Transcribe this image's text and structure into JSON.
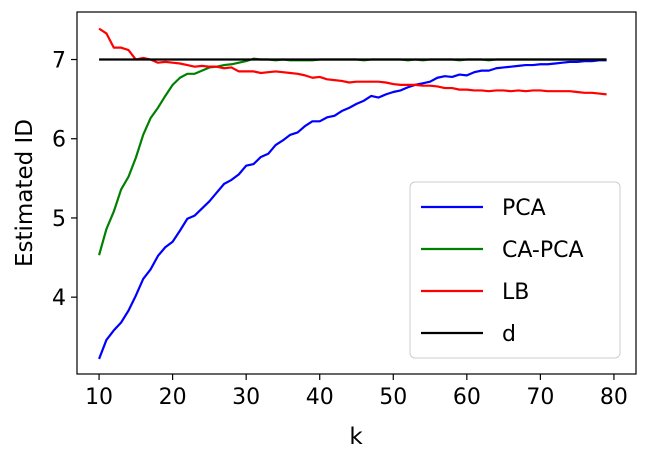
{
  "chart_data": {
    "type": "line",
    "title": "",
    "xlabel": "k",
    "ylabel": "Estimated ID",
    "xlim": [
      7,
      83
    ],
    "ylim": [
      3.03,
      7.6
    ],
    "xticks": [
      10,
      20,
      30,
      40,
      50,
      60,
      70,
      80
    ],
    "yticks": [
      4,
      5,
      6,
      7
    ],
    "grid": false,
    "legend_position": "lower-right",
    "x": [
      10,
      11,
      12,
      13,
      14,
      15,
      16,
      17,
      18,
      19,
      20,
      21,
      22,
      23,
      24,
      25,
      26,
      27,
      28,
      29,
      30,
      31,
      32,
      33,
      34,
      35,
      36,
      37,
      38,
      39,
      40,
      41,
      42,
      43,
      44,
      45,
      46,
      47,
      48,
      49,
      50,
      51,
      52,
      53,
      54,
      55,
      56,
      57,
      58,
      59,
      60,
      61,
      62,
      63,
      64,
      65,
      66,
      67,
      68,
      69,
      70,
      71,
      72,
      73,
      74,
      75,
      76,
      77,
      78,
      79
    ],
    "series": [
      {
        "name": "PCA",
        "color": "#0000ff",
        "values": [
          3.22,
          3.46,
          3.58,
          3.68,
          3.83,
          4.02,
          4.23,
          4.35,
          4.52,
          4.63,
          4.7,
          4.84,
          4.99,
          5.03,
          5.12,
          5.21,
          5.32,
          5.43,
          5.48,
          5.55,
          5.66,
          5.68,
          5.77,
          5.81,
          5.92,
          5.98,
          6.05,
          6.08,
          6.16,
          6.22,
          6.22,
          6.27,
          6.29,
          6.35,
          6.39,
          6.44,
          6.48,
          6.54,
          6.52,
          6.56,
          6.59,
          6.61,
          6.65,
          6.68,
          6.7,
          6.72,
          6.77,
          6.79,
          6.78,
          6.81,
          6.8,
          6.84,
          6.86,
          6.86,
          6.89,
          6.9,
          6.91,
          6.92,
          6.93,
          6.93,
          6.94,
          6.94,
          6.95,
          6.96,
          6.97,
          6.97,
          6.98,
          6.98,
          6.99,
          6.99
        ]
      },
      {
        "name": "CA-PCA",
        "color": "#008000",
        "values": [
          4.53,
          4.86,
          5.08,
          5.36,
          5.52,
          5.76,
          6.05,
          6.26,
          6.39,
          6.54,
          6.68,
          6.77,
          6.82,
          6.82,
          6.86,
          6.9,
          6.91,
          6.93,
          6.94,
          6.96,
          6.98,
          7.01,
          7.0,
          7.0,
          6.99,
          7.0,
          6.99,
          6.99,
          6.99,
          6.99,
          7.0,
          7.0,
          7.0,
          7.0,
          7.0,
          7.0,
          6.99,
          7.0,
          7.0,
          7.0,
          7.0,
          7.0,
          6.99,
          7.0,
          6.99,
          7.0,
          7.0,
          7.0,
          7.0,
          6.99,
          7.0,
          7.0,
          7.0,
          6.99,
          7.0,
          7.0,
          7.0,
          7.0,
          7.0,
          7.0,
          7.0,
          7.0,
          7.0,
          7.0,
          7.0,
          7.0,
          7.0,
          7.0,
          7.0,
          7.0
        ]
      },
      {
        "name": "LB",
        "color": "#ff0000",
        "values": [
          7.39,
          7.33,
          7.15,
          7.15,
          7.12,
          7.0,
          7.02,
          7.0,
          6.96,
          6.97,
          6.96,
          6.95,
          6.93,
          6.91,
          6.92,
          6.91,
          6.91,
          6.89,
          6.9,
          6.85,
          6.85,
          6.85,
          6.83,
          6.84,
          6.85,
          6.84,
          6.83,
          6.82,
          6.8,
          6.77,
          6.78,
          6.75,
          6.74,
          6.73,
          6.71,
          6.72,
          6.72,
          6.72,
          6.72,
          6.71,
          6.69,
          6.68,
          6.68,
          6.68,
          6.67,
          6.67,
          6.66,
          6.64,
          6.64,
          6.62,
          6.62,
          6.61,
          6.61,
          6.6,
          6.61,
          6.61,
          6.6,
          6.61,
          6.6,
          6.61,
          6.61,
          6.6,
          6.6,
          6.6,
          6.6,
          6.59,
          6.58,
          6.58,
          6.57,
          6.56
        ]
      },
      {
        "name": "d",
        "color": "#000000",
        "values": [
          7,
          7,
          7,
          7,
          7,
          7,
          7,
          7,
          7,
          7,
          7,
          7,
          7,
          7,
          7,
          7,
          7,
          7,
          7,
          7,
          7,
          7,
          7,
          7,
          7,
          7,
          7,
          7,
          7,
          7,
          7,
          7,
          7,
          7,
          7,
          7,
          7,
          7,
          7,
          7,
          7,
          7,
          7,
          7,
          7,
          7,
          7,
          7,
          7,
          7,
          7,
          7,
          7,
          7,
          7,
          7,
          7,
          7,
          7,
          7,
          7,
          7,
          7,
          7,
          7,
          7,
          7,
          7,
          7,
          7
        ]
      }
    ]
  }
}
